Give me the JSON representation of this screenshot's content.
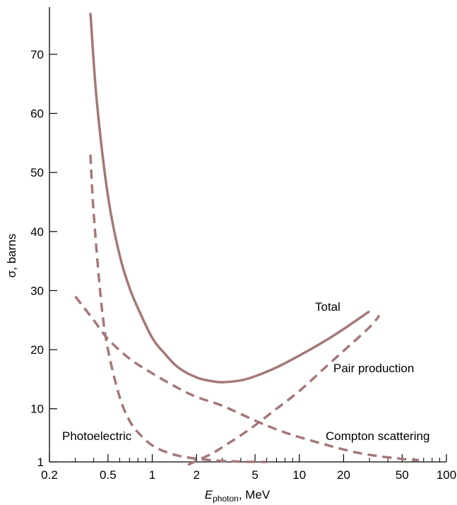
{
  "chart_data": {
    "type": "line",
    "title": "",
    "ylabel": "σ, barns",
    "xlabel_main": "E",
    "xlabel_sub": "photon",
    "xlabel_rest": ", MeV",
    "x_scale": "log",
    "xlim": [
      0.2,
      100
    ],
    "ylim": [
      1,
      78
    ],
    "x_ticks": [
      0.2,
      0.5,
      1,
      2,
      5,
      10,
      20,
      50,
      100
    ],
    "x_tick_labels": [
      "0.2",
      "0.5",
      "1",
      "2",
      "5",
      "10",
      "20",
      "50",
      "100"
    ],
    "y_ticks": [
      1,
      10,
      20,
      30,
      40,
      50,
      60,
      70
    ],
    "y_tick_labels": [
      "1",
      "10",
      "20",
      "30",
      "40",
      "50",
      "60",
      "70"
    ],
    "grid": false,
    "color": "#a47878",
    "series": [
      {
        "name": "Total",
        "style": "solid",
        "x": [
          0.38,
          0.42,
          0.5,
          0.6,
          0.7,
          0.8,
          1,
          1.2,
          1.5,
          2,
          2.5,
          3,
          4,
          5,
          7,
          10,
          15,
          20,
          30
        ],
        "y": [
          77,
          62,
          46,
          36,
          30.5,
          27,
          22,
          19.5,
          17,
          15.3,
          14.7,
          14.5,
          14.8,
          15.5,
          17,
          19,
          21.5,
          23.5,
          26.5
        ]
      },
      {
        "name": "Pair production",
        "style": "dashed",
        "x": [
          1.75,
          2,
          2.5,
          3,
          4,
          5,
          7,
          10,
          15,
          20,
          30,
          35
        ],
        "y": [
          0.5,
          1.2,
          2.3,
          3.5,
          5.5,
          7.2,
          10,
          13,
          17,
          19.8,
          23.8,
          25.8
        ]
      },
      {
        "name": "Compton scattering",
        "style": "dashed",
        "x": [
          0.3,
          0.4,
          0.5,
          0.7,
          1,
          1.5,
          2,
          3,
          5,
          7,
          10,
          20,
          30,
          50,
          65
        ],
        "y": [
          29,
          25,
          21.8,
          18.5,
          16,
          13.5,
          12,
          10.5,
          8,
          6.5,
          5.2,
          3.1,
          2.2,
          1.5,
          1.3
        ]
      },
      {
        "name": "Photoelectric",
        "style": "dashed",
        "x": [
          0.38,
          0.4,
          0.45,
          0.5,
          0.6,
          0.7,
          0.8,
          1,
          1.3,
          1.7,
          2.5,
          4,
          6
        ],
        "y": [
          53,
          43,
          28,
          20,
          12,
          8,
          6,
          3.8,
          2.5,
          1.8,
          1.3,
          1.05,
          1.0
        ]
      }
    ],
    "curve_labels": [
      "Total",
      "Pair production",
      "Compton scattering",
      "Photoelectric"
    ]
  }
}
